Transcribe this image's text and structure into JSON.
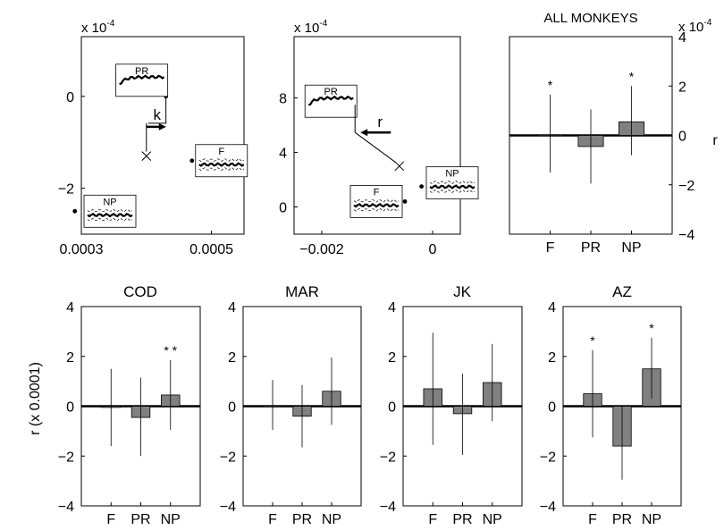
{
  "colors": {
    "bar_fill": "#808080",
    "axis": "#000000",
    "background": "#ffffff"
  },
  "ylabel_bottom": "r (x 0.0001)",
  "chart_data": [
    {
      "id": "k_panel",
      "type": "scatter",
      "title": "",
      "exponent_label": "x 10",
      "exponent_power": "-4",
      "xlim": [
        0.0003,
        0.00055
      ],
      "ylim": [
        -3.0,
        1.3
      ],
      "xticks": [
        0.0003,
        0.0005
      ],
      "xtick_labels": [
        "0.0003",
        "0.0005"
      ],
      "yticks": [
        -2,
        0
      ],
      "ytick_labels": [
        "−2",
        "0"
      ],
      "markers": [
        {
          "label": "PR",
          "x": 0.00043,
          "y": 0.0
        },
        {
          "label": "F",
          "x": 0.00047,
          "y": -1.4
        },
        {
          "label": "NP",
          "x": 0.00029,
          "y": -2.5
        }
      ],
      "cross": {
        "x": 0.0004,
        "y": -1.3
      },
      "vector_label": "k"
    },
    {
      "id": "r_panel",
      "type": "scatter",
      "title": "",
      "exponent_label": "x 10",
      "exponent_power": "-4",
      "xlim": [
        -0.0025,
        0.0005
      ],
      "ylim": [
        -2.0,
        12.5
      ],
      "xticks": [
        -0.002,
        0
      ],
      "xtick_labels": [
        "−0.002",
        "0"
      ],
      "yticks": [
        0,
        4,
        8
      ],
      "ytick_labels": [
        "0",
        "4",
        "8"
      ],
      "markers": [
        {
          "label": "PR",
          "x": -0.0014,
          "y": 7.5
        },
        {
          "label": "F",
          "x": -0.0005,
          "y": 0.4
        },
        {
          "label": "NP",
          "x": -0.0002,
          "y": 1.5
        }
      ],
      "cross": {
        "x": -0.0006,
        "y": 3.0
      },
      "vector_label": "r"
    },
    {
      "id": "all_monkeys",
      "type": "bar",
      "title": "ALL MONKEYS",
      "exponent_label": "x 10",
      "exponent_power": "-4",
      "side_label": "r",
      "categories": [
        "F",
        "PR",
        "NP"
      ],
      "values": [
        0.02,
        -0.45,
        0.55
      ],
      "error_low": [
        -1.5,
        -1.95,
        -0.8
      ],
      "error_high": [
        1.65,
        1.05,
        2.0
      ],
      "significance": [
        "*",
        "",
        "*"
      ],
      "ylim": [
        -4,
        4
      ],
      "yticks": [
        -4,
        -2,
        0,
        2,
        4
      ],
      "ytick_labels": [
        "−4",
        "−2",
        "0",
        "2",
        "4"
      ]
    },
    {
      "id": "cod",
      "type": "bar",
      "title": "COD",
      "categories": [
        "F",
        "PR",
        "NP"
      ],
      "values": [
        -0.05,
        -0.45,
        0.45
      ],
      "error_low": [
        -1.6,
        -2.0,
        -0.95
      ],
      "error_high": [
        1.5,
        1.15,
        1.85
      ],
      "significance": [
        "",
        "",
        "* *"
      ],
      "ylim": [
        -4,
        4
      ],
      "yticks": [
        -4,
        -2,
        0,
        2,
        4
      ],
      "ytick_labels": [
        "−4",
        "−2",
        "0",
        "2",
        "4"
      ]
    },
    {
      "id": "mar",
      "type": "bar",
      "title": "MAR",
      "categories": [
        "F",
        "PR",
        "NP"
      ],
      "values": [
        0.02,
        -0.4,
        0.6
      ],
      "error_low": [
        -0.95,
        -1.65,
        -0.75
      ],
      "error_high": [
        1.05,
        0.85,
        1.95
      ],
      "significance": [
        "",
        "",
        ""
      ],
      "ylim": [
        -4,
        4
      ],
      "yticks": [
        -4,
        -2,
        0,
        2,
        4
      ],
      "ytick_labels": [
        "−4",
        "−2",
        "0",
        "2",
        "4"
      ]
    },
    {
      "id": "jk",
      "type": "bar",
      "title": "JK",
      "categories": [
        "F",
        "PR",
        "NP"
      ],
      "values": [
        0.7,
        -0.3,
        0.95
      ],
      "error_low": [
        -1.55,
        -1.95,
        -0.6
      ],
      "error_high": [
        2.95,
        1.3,
        2.5
      ],
      "significance": [
        "",
        "",
        ""
      ],
      "ylim": [
        -4,
        4
      ],
      "yticks": [
        -4,
        -2,
        0,
        2,
        4
      ],
      "ytick_labels": [
        "−4",
        "−2",
        "0",
        "2",
        "4"
      ]
    },
    {
      "id": "az",
      "type": "bar",
      "title": "AZ",
      "categories": [
        "F",
        "PR",
        "NP"
      ],
      "values": [
        0.5,
        -1.6,
        1.5
      ],
      "error_low": [
        -1.25,
        -2.95,
        0.3
      ],
      "error_high": [
        2.25,
        0.0,
        2.75
      ],
      "significance": [
        "*",
        "",
        "*"
      ],
      "ylim": [
        -4,
        4
      ],
      "yticks": [
        -4,
        -2,
        0,
        2,
        4
      ],
      "ytick_labels": [
        "−4",
        "−2",
        "0",
        "2",
        "4"
      ]
    }
  ]
}
